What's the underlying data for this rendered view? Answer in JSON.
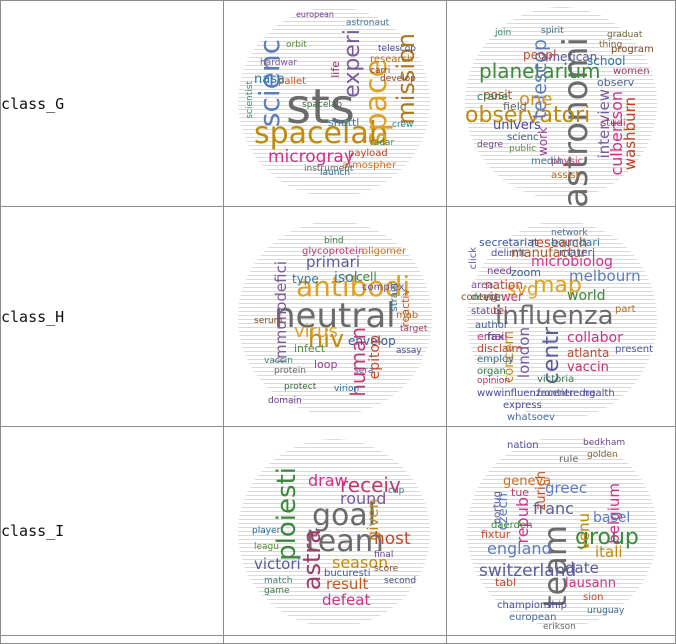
{
  "rows": [
    {
      "label": "class_G",
      "cloud_left": [
        "sts",
        "spacelab",
        "scienc",
        "space",
        "mission",
        "experi",
        "microgray",
        "nasa",
        "research",
        "payload",
        "atmospher",
        "shuttl",
        "radar",
        "astronaut",
        "carri",
        "telescop",
        "scientist",
        "pallet",
        "orbit",
        "hardwar",
        "launch",
        "instrument",
        "life",
        "develop",
        "crew",
        "european",
        "spacelab"
      ],
      "cloud_right": [
        "astronomi",
        "observatori",
        "planetarium",
        "telescop",
        "one",
        "posit",
        "interview",
        "school",
        "culbertson",
        "washburn",
        "american",
        "peopl",
        "univers",
        "crane",
        "field",
        "physic",
        "scienc",
        "work",
        "assist",
        "media",
        "observ",
        "program",
        "studi",
        "public",
        "women",
        "thing",
        "degre",
        "spirit",
        "graduat",
        "join"
      ]
    },
    {
      "label": "class_H",
      "cloud_left": [
        "neutral",
        "antibodi",
        "hiv",
        "virus",
        "human",
        "immunodefici",
        "primari",
        "isol",
        "cell",
        "type",
        "envelop",
        "reactiv",
        "loop",
        "epitop",
        "glycoprotein",
        "oligomer",
        "infect",
        "complex",
        "strain",
        "mab",
        "target",
        "vaccin",
        "protein",
        "sera",
        "protect",
        "virion",
        "serum",
        "assay",
        "bind",
        "domain"
      ],
      "cloud_right": [
        "influenza",
        "map",
        "svg",
        "melbourn",
        "london",
        "centr",
        "research",
        "microbiolog",
        "manufactur",
        "secretariat",
        "boundari",
        "nation",
        "viewer",
        "world",
        "concern",
        "email",
        "disclaim",
        "fax",
        "collabor",
        "atlanta",
        "vaccin",
        "tel",
        "wwwinfluenzacentreorg",
        "express",
        "frontier",
        "whatsoev",
        "employ",
        "organ",
        "author",
        "status",
        "design",
        "area",
        "contact",
        "need",
        "part",
        "present",
        "health",
        "victoria",
        "opinion",
        "click",
        "zoom",
        "materi",
        "delimit",
        "network"
      ]
    },
    {
      "label": "class_I",
      "cloud_left": [
        "goal",
        "team",
        "ploiesti",
        "astra",
        "receiv",
        "draw",
        "round",
        "given",
        "host",
        "season",
        "result",
        "defeat",
        "victori",
        "bucuresti",
        "match",
        "final",
        "cup",
        "leagu",
        "player",
        "score",
        "game",
        "second"
      ],
      "cloud_right": [
        "team",
        "group",
        "switzerland",
        "england",
        "greec",
        "franc",
        "belgium",
        "repub",
        "zurich",
        "czech",
        "venu",
        "itali",
        "date",
        "basel",
        "lausann",
        "geneva",
        "tabl",
        "tue",
        "fixtur",
        "daerden",
        "championship",
        "european",
        "nation",
        "portug",
        "sion",
        "rule",
        "golden",
        "erikson",
        "bedkham",
        "uruguay"
      ]
    }
  ]
}
